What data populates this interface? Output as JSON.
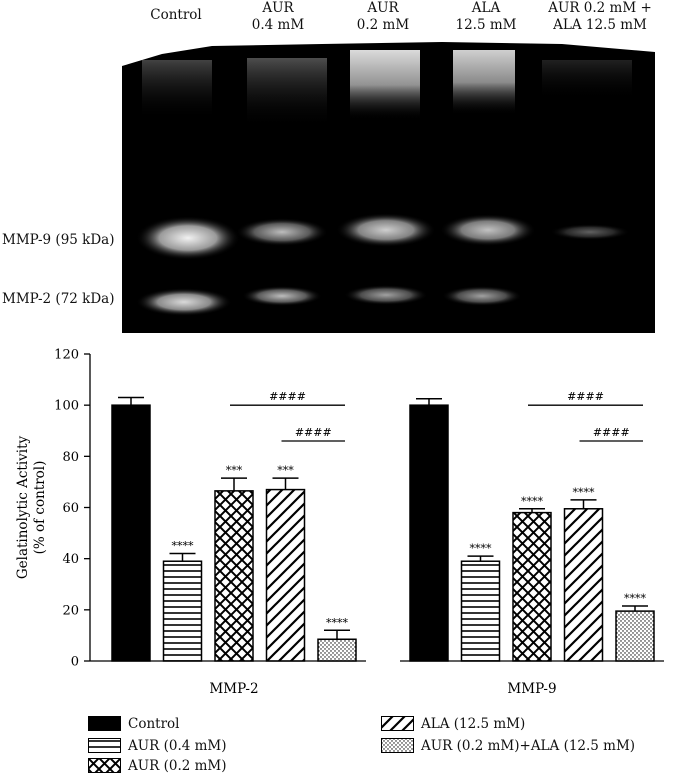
{
  "gel": {
    "lanes": [
      {
        "line1": "Control",
        "line2": ""
      },
      {
        "line1": "AUR",
        "line2": "0.4 mM"
      },
      {
        "line1": "AUR",
        "line2": "0.2 mM"
      },
      {
        "line1": "ALA",
        "line2": "12.5 mM"
      },
      {
        "line1": "AUR 0.2 mM +",
        "line2": "ALA 12.5 mM"
      }
    ],
    "bands": {
      "mmp9": "MMP-9 (95 kDa)",
      "mmp2": "MMP-2 (72 kDa)"
    }
  },
  "chart_data": {
    "type": "bar",
    "ylabel_line1": "Gelatinolytic Activity",
    "ylabel_line2": "(% of control)",
    "ylim": [
      0,
      120
    ],
    "yticks": [
      0,
      20,
      40,
      60,
      80,
      100,
      120
    ],
    "groups": [
      "MMP-2",
      "MMP-9"
    ],
    "series": [
      {
        "name": "Control",
        "pattern": "solid",
        "values": [
          100,
          100
        ],
        "errors": [
          3,
          2.5
        ],
        "marks": [
          "",
          ""
        ]
      },
      {
        "name": "AUR (0.4 mM)",
        "pattern": "horizontal",
        "values": [
          39,
          39
        ],
        "errors": [
          3,
          2
        ],
        "marks": [
          "****",
          "****"
        ]
      },
      {
        "name": "AUR (0.2 mM)",
        "pattern": "crosshatch",
        "values": [
          66.5,
          58
        ],
        "errors": [
          5,
          1.5
        ],
        "marks": [
          "***",
          "****"
        ]
      },
      {
        "name": "ALA (12.5 mM)",
        "pattern": "diagonal",
        "values": [
          67,
          59.5
        ],
        "errors": [
          4.5,
          3.5
        ],
        "marks": [
          "***",
          "****"
        ]
      },
      {
        "name": "AUR (0.2 mM)+ALA (12.5 mM)",
        "pattern": "dots",
        "values": [
          8.5,
          19.5
        ],
        "errors": [
          3.5,
          2
        ],
        "marks": [
          "****",
          "****"
        ]
      }
    ],
    "comparisons": [
      {
        "group": 0,
        "from": 2,
        "to": 4,
        "label": "####",
        "level": 100
      },
      {
        "group": 0,
        "from": 3,
        "to": 4,
        "label": "####",
        "level": 86
      },
      {
        "group": 1,
        "from": 2,
        "to": 4,
        "label": "####",
        "level": 100
      },
      {
        "group": 1,
        "from": 3,
        "to": 4,
        "label": "####",
        "level": 86
      }
    ],
    "colors": {
      "bar_fill": "#000000",
      "background": "#ffffff"
    },
    "grid": false,
    "legend_position": "bottom"
  }
}
